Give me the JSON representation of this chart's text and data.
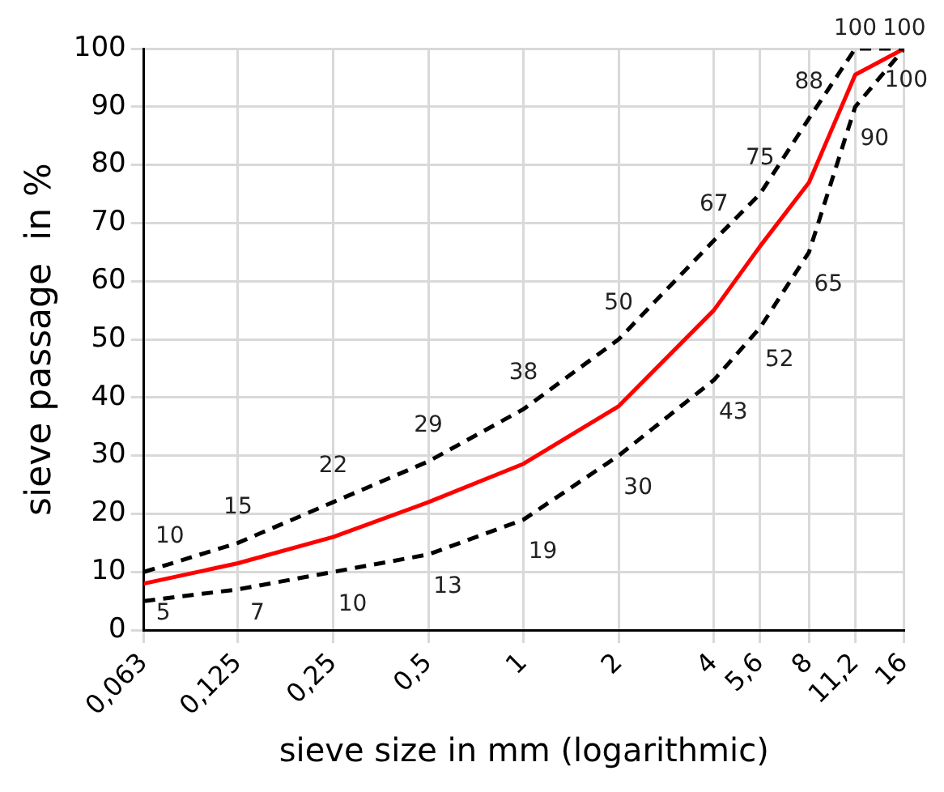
{
  "chart_data": {
    "type": "line",
    "xlabel": "sieve size in mm (logarithmic)",
    "ylabel": "sieve passage  in %",
    "log": "x",
    "x": [
      0.063,
      0.125,
      0.25,
      0.5,
      1,
      2,
      4,
      5.6,
      8,
      11.2,
      16
    ],
    "xlim": [
      0.063,
      16
    ],
    "xticks": [
      {
        "value": 0.063,
        "label": "0,063"
      },
      {
        "value": 0.125,
        "label": "0,125"
      },
      {
        "value": 0.25,
        "label": "0,25"
      },
      {
        "value": 0.5,
        "label": "0,5"
      },
      1,
      2,
      4,
      {
        "value": 5.6,
        "label": "5,6"
      },
      8,
      {
        "value": 11.2,
        "label": "11,2"
      },
      16
    ],
    "ylim": [
      0,
      100
    ],
    "yticks": [
      0,
      10,
      20,
      30,
      40,
      50,
      60,
      70,
      80,
      90,
      100
    ],
    "grid": true,
    "legend": false,
    "marker": "none",
    "series": [
      {
        "color": "#000000",
        "line_style": "dashed",
        "values": [
          10,
          15,
          22,
          29,
          38,
          50,
          67,
          75,
          88,
          100,
          100
        ],
        "value_labels": [
          "10",
          "15",
          "22",
          "29",
          "38",
          "50",
          "67",
          "75",
          "88",
          "100",
          "100"
        ]
      },
      {
        "color": "#ff0000",
        "line_style": "solid",
        "values": [
          8,
          11.5,
          16,
          22,
          28.6,
          38.5,
          55,
          66,
          77,
          95.5,
          100
        ]
      },
      {
        "color": "#000000",
        "line_style": "dashed",
        "values": [
          5,
          7,
          10,
          13,
          19,
          30,
          43,
          52,
          65,
          90,
          100
        ],
        "value_labels": [
          "5",
          "7",
          "10",
          "13",
          "19",
          "30",
          "43",
          "52",
          "65",
          "90",
          "100"
        ]
      }
    ]
  }
}
